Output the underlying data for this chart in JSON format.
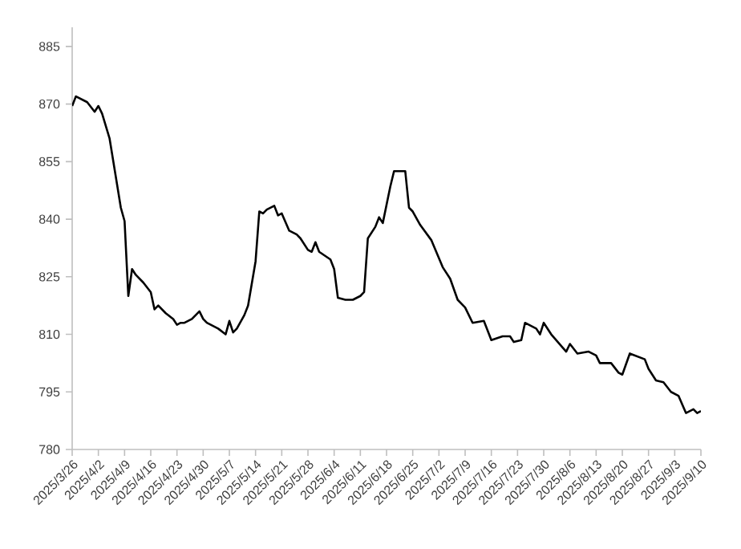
{
  "chart_data": {
    "type": "line",
    "x": [
      "2025-03-26",
      "2025-03-27",
      "2025-03-30",
      "2025-04-01",
      "2025-04-02",
      "2025-04-03",
      "2025-04-05",
      "2025-04-07",
      "2025-04-08",
      "2025-04-09",
      "2025-04-10",
      "2025-04-11",
      "2025-04-12",
      "2025-04-14",
      "2025-04-16",
      "2025-04-17",
      "2025-04-18",
      "2025-04-20",
      "2025-04-22",
      "2025-04-23",
      "2025-04-24",
      "2025-04-25",
      "2025-04-27",
      "2025-04-29",
      "2025-04-30",
      "2025-05-01",
      "2025-05-04",
      "2025-05-06",
      "2025-05-07",
      "2025-05-08",
      "2025-05-09",
      "2025-05-11",
      "2025-05-12",
      "2025-05-14",
      "2025-05-15",
      "2025-05-16",
      "2025-05-17",
      "2025-05-19",
      "2025-05-20",
      "2025-05-21",
      "2025-05-23",
      "2025-05-25",
      "2025-05-26",
      "2025-05-28",
      "2025-05-29",
      "2025-05-30",
      "2025-05-31",
      "2025-06-03",
      "2025-06-04",
      "2025-06-05",
      "2025-06-07",
      "2025-06-09",
      "2025-06-11",
      "2025-06-12",
      "2025-06-13",
      "2025-06-15",
      "2025-06-16",
      "2025-06-17",
      "2025-06-19",
      "2025-06-20",
      "2025-06-23",
      "2025-06-24",
      "2025-06-25",
      "2025-06-27",
      "2025-06-30",
      "2025-07-03",
      "2025-07-05",
      "2025-07-07",
      "2025-07-09",
      "2025-07-11",
      "2025-07-14",
      "2025-07-16",
      "2025-07-19",
      "2025-07-21",
      "2025-07-22",
      "2025-07-24",
      "2025-07-25",
      "2025-07-28",
      "2025-07-29",
      "2025-07-30",
      "2025-08-01",
      "2025-08-05",
      "2025-08-06",
      "2025-08-08",
      "2025-08-11",
      "2025-08-13",
      "2025-08-14",
      "2025-08-17",
      "2025-08-19",
      "2025-08-20",
      "2025-08-22",
      "2025-08-26",
      "2025-08-27",
      "2025-08-29",
      "2025-08-31",
      "2025-09-02",
      "2025-09-04",
      "2025-09-06",
      "2025-09-08",
      "2025-09-09",
      "2025-09-10"
    ],
    "series": [
      {
        "color": "#000000",
        "values": [
          869.5,
          872,
          870.5,
          868,
          869.5,
          867.5,
          861,
          849,
          843,
          839.5,
          820,
          827,
          825.5,
          823.5,
          821,
          816.5,
          817.5,
          815.5,
          814,
          812.5,
          813,
          813,
          814,
          816,
          814,
          813,
          811.5,
          810,
          813.5,
          810.5,
          811.5,
          815,
          817.5,
          829,
          842,
          841.5,
          842.5,
          843.5,
          841,
          841.5,
          837,
          836,
          835,
          832,
          831.5,
          834,
          831.5,
          829.5,
          827,
          819.5,
          819,
          819,
          820,
          821,
          835,
          838,
          840.5,
          839,
          848.5,
          852.5,
          852.5,
          843,
          842,
          838.5,
          834.5,
          827.5,
          824.5,
          819,
          817,
          813,
          813.5,
          808.5,
          809.5,
          809.5,
          808,
          808.5,
          813,
          811.5,
          810,
          813,
          810,
          805.5,
          807.5,
          805,
          805.5,
          804.5,
          802.5,
          802.5,
          800,
          799.5,
          805,
          803.5,
          801,
          798,
          797.5,
          795,
          794,
          789.5,
          790.5,
          789.5,
          790
        ]
      }
    ],
    "xlim": [
      "2025-03-26",
      "2025-09-10"
    ],
    "xticks": [
      {
        "value": "2025-03-26",
        "label": "2025/3/26"
      },
      {
        "value": "2025-04-02",
        "label": "2025/4/2"
      },
      {
        "value": "2025-04-09",
        "label": "2025/4/9"
      },
      {
        "value": "2025-04-16",
        "label": "2025/4/16"
      },
      {
        "value": "2025-04-23",
        "label": "2025/4/23"
      },
      {
        "value": "2025-04-30",
        "label": "2025/4/30"
      },
      {
        "value": "2025-05-07",
        "label": "2025/5/7"
      },
      {
        "value": "2025-05-14",
        "label": "2025/5/14"
      },
      {
        "value": "2025-05-21",
        "label": "2025/5/21"
      },
      {
        "value": "2025-05-28",
        "label": "2025/5/28"
      },
      {
        "value": "2025-06-04",
        "label": "2025/6/4"
      },
      {
        "value": "2025-06-11",
        "label": "2025/6/11"
      },
      {
        "value": "2025-06-18",
        "label": "2025/6/18"
      },
      {
        "value": "2025-06-25",
        "label": "2025/6/25"
      },
      {
        "value": "2025-07-02",
        "label": "2025/7/2"
      },
      {
        "value": "2025-07-09",
        "label": "2025/7/9"
      },
      {
        "value": "2025-07-16",
        "label": "2025/7/16"
      },
      {
        "value": "2025-07-23",
        "label": "2025/7/23"
      },
      {
        "value": "2025-07-30",
        "label": "2025/7/30"
      },
      {
        "value": "2025-08-06",
        "label": "2025/8/6"
      },
      {
        "value": "2025-08-13",
        "label": "2025/8/13"
      },
      {
        "value": "2025-08-20",
        "label": "2025/8/20"
      },
      {
        "value": "2025-08-27",
        "label": "2025/8/27"
      },
      {
        "value": "2025-09-03",
        "label": "2025/9/3"
      },
      {
        "value": "2025-09-10",
        "label": "2025/9/10"
      }
    ],
    "ylim": [
      780,
      890
    ],
    "yticks": [
      780,
      795,
      810,
      825,
      840,
      855,
      870,
      885
    ]
  }
}
